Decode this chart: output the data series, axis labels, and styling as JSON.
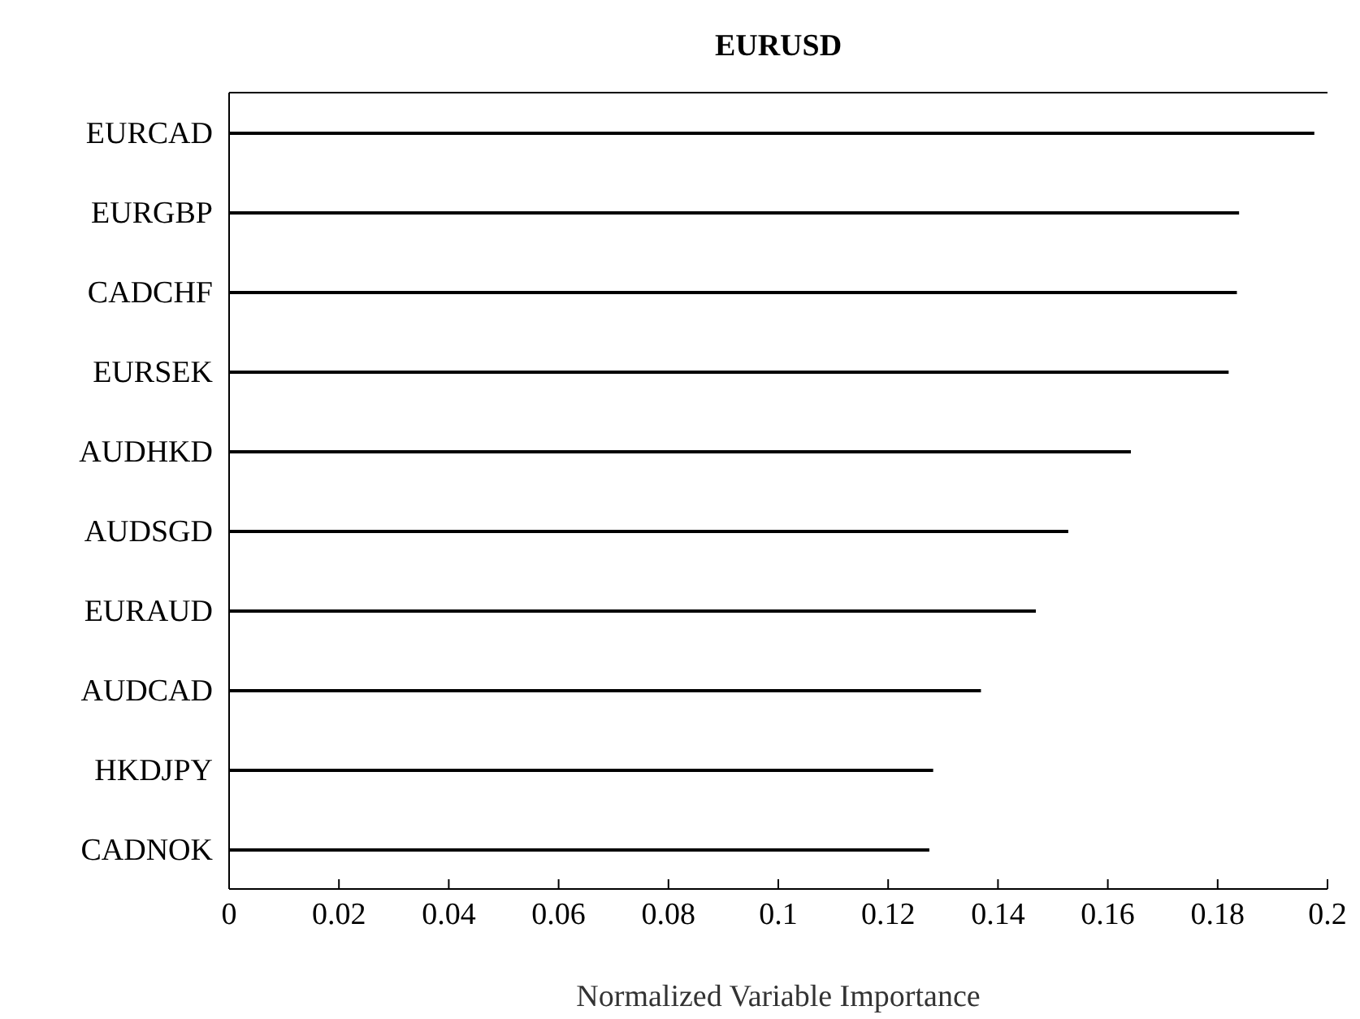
{
  "chart_data": {
    "type": "bar",
    "orientation": "horizontal",
    "title": "EURUSD",
    "xlabel": "Normalized Variable Importance",
    "categories": [
      "EURCAD",
      "EURGBP",
      "CADCHF",
      "EURSEK",
      "AUDHKD",
      "AUDSGD",
      "EURAUD",
      "AUDCAD",
      "HKDJPY",
      "CADNOK"
    ],
    "values": [
      0.1976,
      0.1839,
      0.1835,
      0.182,
      0.1642,
      0.1528,
      0.1469,
      0.1369,
      0.1282,
      0.1275
    ],
    "color": "#000000",
    "xlim": [
      0,
      0.2
    ],
    "xticks": [
      0,
      0.02,
      0.04,
      0.06,
      0.08,
      0.1,
      0.12,
      0.14,
      0.16,
      0.18,
      0.2
    ],
    "grid": false,
    "legend": false
  }
}
